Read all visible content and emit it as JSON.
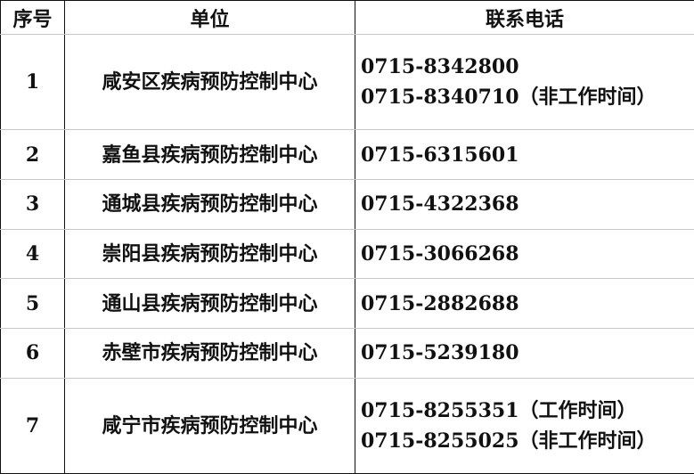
{
  "headers": {
    "index": "序号",
    "unit": "单位",
    "phone": "联系电话"
  },
  "rows": [
    {
      "index": "1",
      "unit": "咸安区疾病预防控制中心",
      "phones": [
        "0715-8342800",
        "0715-8340710（非工作时间）"
      ]
    },
    {
      "index": "2",
      "unit": "嘉鱼县疾病预防控制中心",
      "phones": [
        "0715-6315601"
      ]
    },
    {
      "index": "3",
      "unit": "通城县疾病预防控制中心",
      "phones": [
        "0715-4322368"
      ]
    },
    {
      "index": "4",
      "unit": "崇阳县疾病预防控制中心",
      "phones": [
        "0715-3066268"
      ]
    },
    {
      "index": "5",
      "unit": "通山县疾病预防控制中心",
      "phones": [
        "0715-2882688"
      ]
    },
    {
      "index": "6",
      "unit": "赤壁市疾病预防控制中心",
      "phones": [
        "0715-5239180"
      ]
    },
    {
      "index": "7",
      "unit": "咸宁市疾病预防控制中心",
      "phones": [
        "0715-8255351（工作时间）",
        "0715-8255025（非工作时间）"
      ]
    }
  ]
}
